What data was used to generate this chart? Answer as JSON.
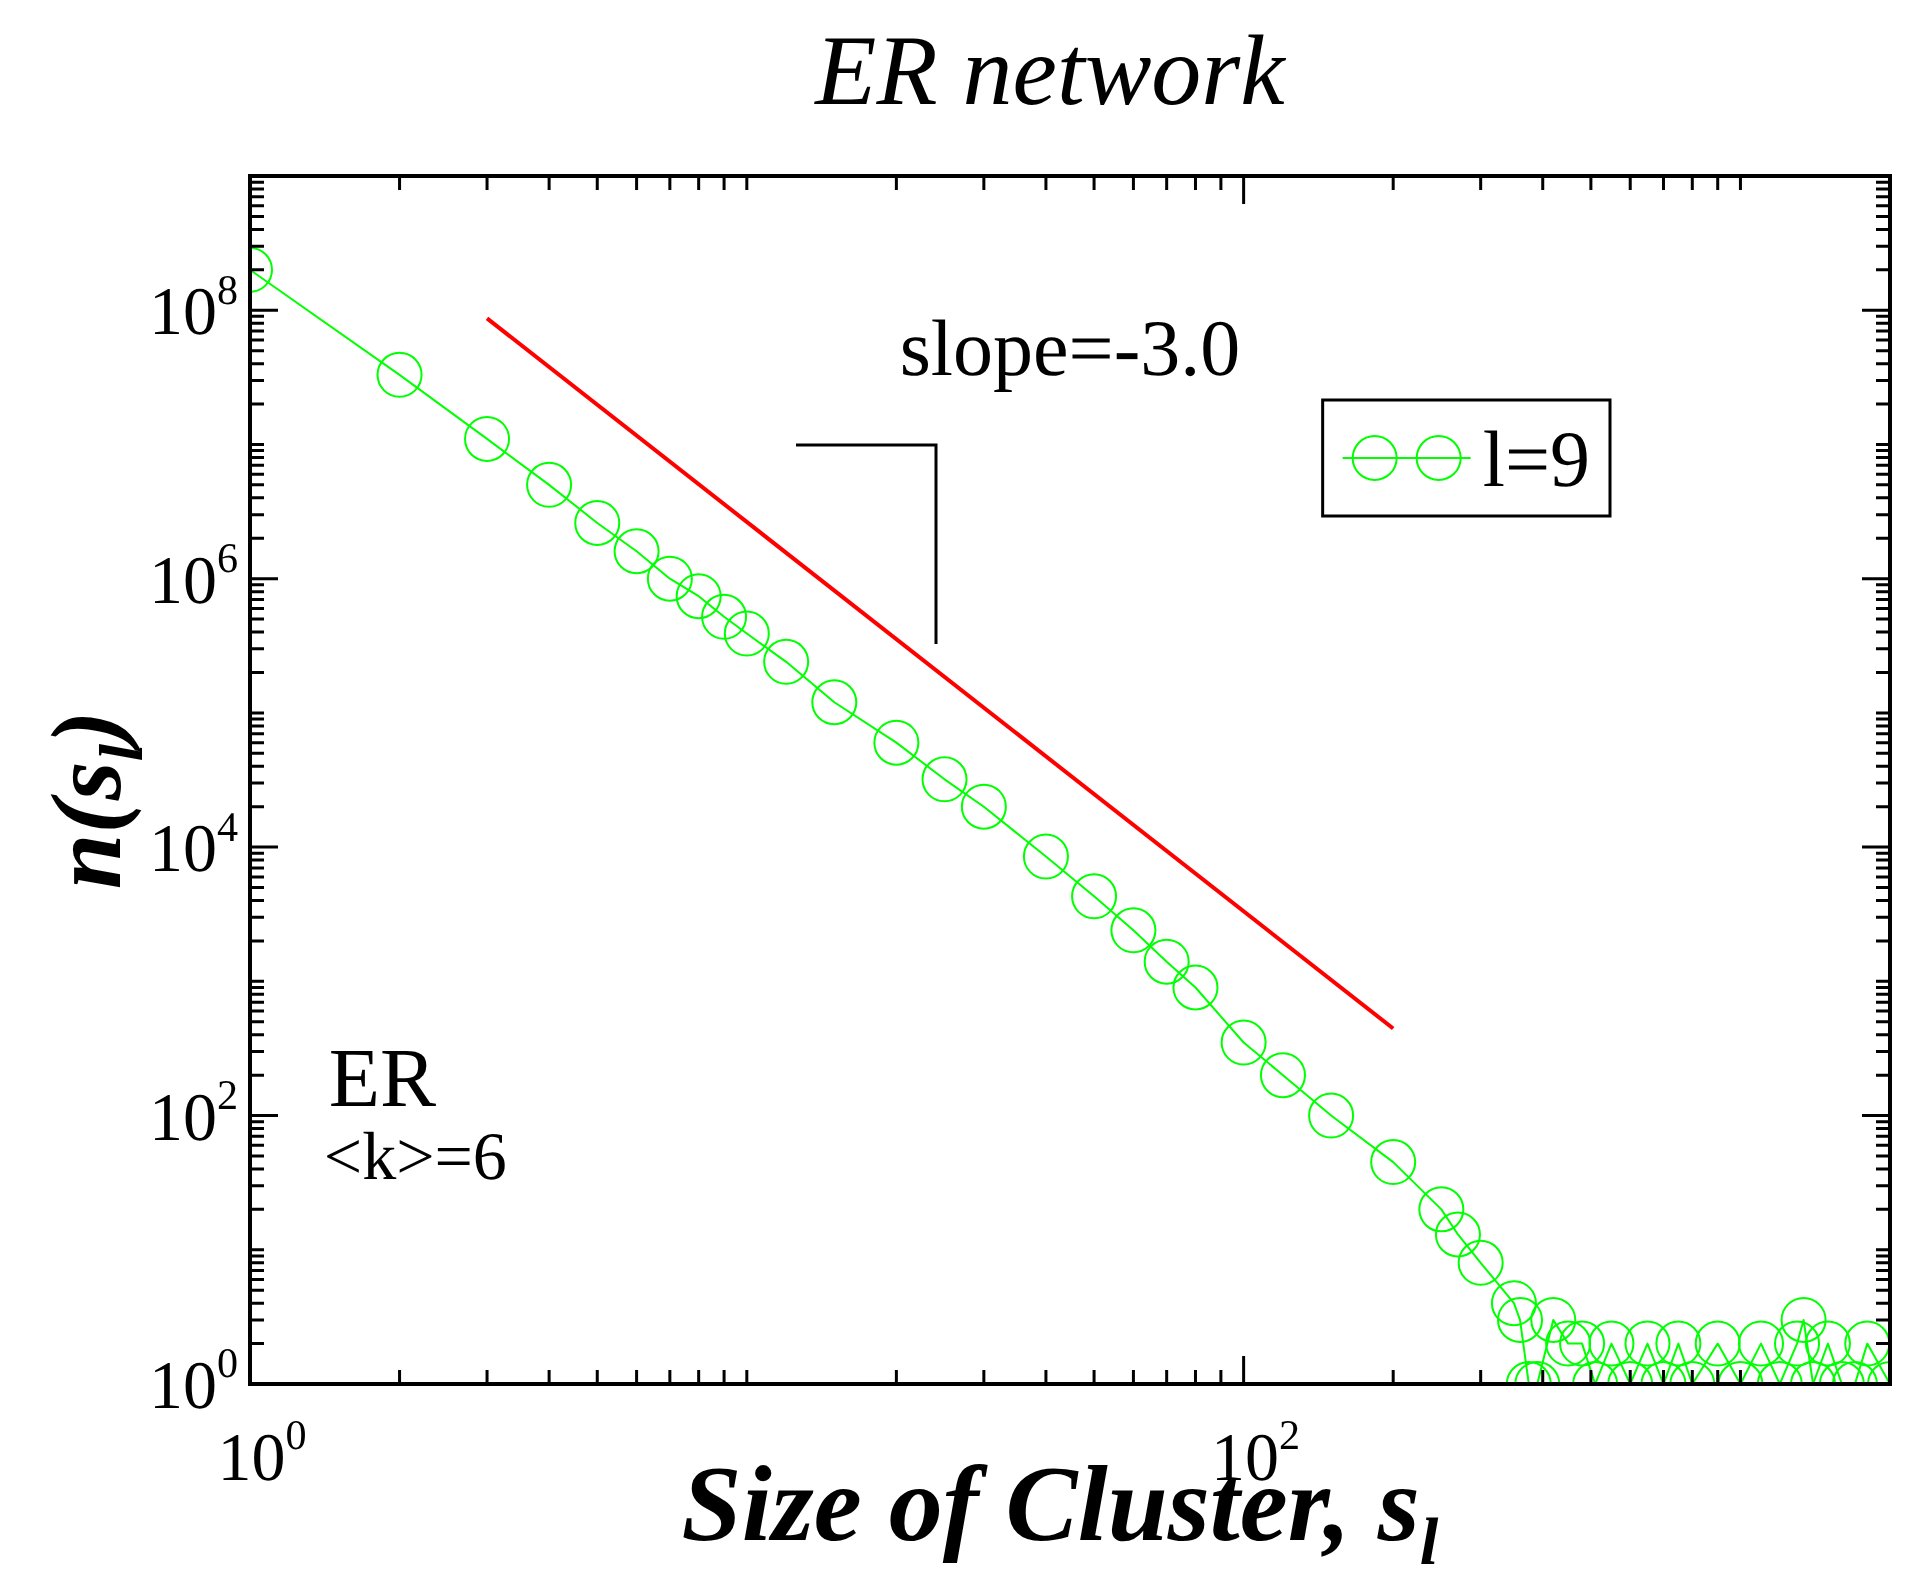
{
  "chart_data": {
    "type": "line",
    "title": "ER network",
    "xlabel": "Size of Cluster, s$_{l}$",
    "ylabel": "n(s$_{l}$)",
    "log": "xy",
    "xlim": [
      1,
      2000
    ],
    "ylim": [
      1,
      1000000000
    ],
    "xticks": [
      {
        "value": 1,
        "label": "10$^{0}$"
      },
      {
        "value": 100,
        "label": "10$^{2}$"
      }
    ],
    "yticks": [
      {
        "value": 1,
        "label": "10$^{0}$"
      },
      {
        "value": 100,
        "label": "10$^{2}$"
      },
      {
        "value": 10000,
        "label": "10$^{4}$"
      },
      {
        "value": 1000000,
        "label": "10$^{6}$"
      },
      {
        "value": 100000000,
        "label": "10$^{8}$"
      }
    ],
    "grid": false,
    "legend": "top right",
    "annotations": [
      "slope=-3.0",
      "ER",
      "<k>=6"
    ],
    "series": [
      {
        "name": "l=9",
        "color": "#00ff00",
        "marker": "circle",
        "x": [
          1,
          2,
          3,
          4,
          5,
          6,
          7,
          8,
          9,
          10,
          12,
          15,
          20,
          25,
          30,
          40,
          50,
          60,
          70,
          80,
          100,
          120,
          150,
          200,
          250,
          270,
          300,
          350,
          360,
          375,
          390,
          420,
          450,
          480,
          510,
          550,
          600,
          650,
          700,
          750,
          800,
          900,
          1000,
          1100,
          1200,
          1300,
          1340,
          1400,
          1500,
          1600,
          1700,
          1800,
          2000
        ],
        "values": [
          200000000,
          33000000,
          11000000,
          5000000,
          2600000,
          1600000,
          1000000,
          740000,
          520000,
          390000,
          240000,
          120000,
          60000,
          32000,
          20000,
          8500,
          4300,
          2400,
          1400,
          900,
          350,
          200,
          100,
          45,
          20,
          13,
          8,
          4,
          3,
          1,
          1,
          3,
          2,
          2,
          1,
          2,
          1,
          2,
          1,
          2,
          1,
          2,
          1,
          2,
          1,
          2,
          3,
          1,
          2,
          1,
          1,
          2,
          1
        ]
      },
      {
        "type": "line",
        "color": "#ff0000",
        "marker": "none",
        "x": [
          3,
          200
        ],
        "values": [
          87000000,
          445
        ]
      }
    ]
  }
}
